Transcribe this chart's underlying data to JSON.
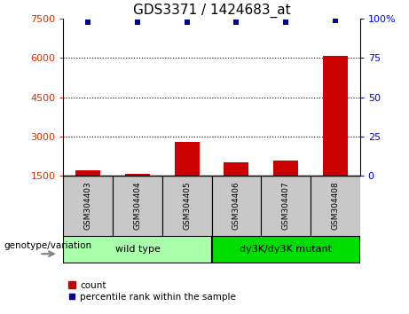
{
  "title": "GDS3371 / 1424683_at",
  "samples": [
    "GSM304403",
    "GSM304404",
    "GSM304405",
    "GSM304406",
    "GSM304407",
    "GSM304408"
  ],
  "counts": [
    1700,
    1580,
    2800,
    2000,
    2100,
    6100
  ],
  "percentile_ranks": [
    98,
    98,
    98,
    98,
    98,
    99
  ],
  "ylim_left": [
    1500,
    7500
  ],
  "ylim_right": [
    0,
    100
  ],
  "yticks_left": [
    1500,
    3000,
    4500,
    6000,
    7500
  ],
  "yticks_right": [
    0,
    25,
    50,
    75,
    100
  ],
  "bar_color": "#CC0000",
  "percentile_color": "#000099",
  "bar_width": 0.5,
  "sample_box_color": "#C8C8C8",
  "group_wt_color": "#AAFFAA",
  "group_mut_color": "#00DD00",
  "genotype_label": "genotype/variation",
  "legend_count_label": "count",
  "legend_percentile_label": "percentile rank within the sample",
  "title_fontsize": 11,
  "tick_fontsize": 8,
  "sample_fontsize": 6.5,
  "group_fontsize": 8,
  "legend_fontsize": 7.5,
  "geno_fontsize": 7.5
}
